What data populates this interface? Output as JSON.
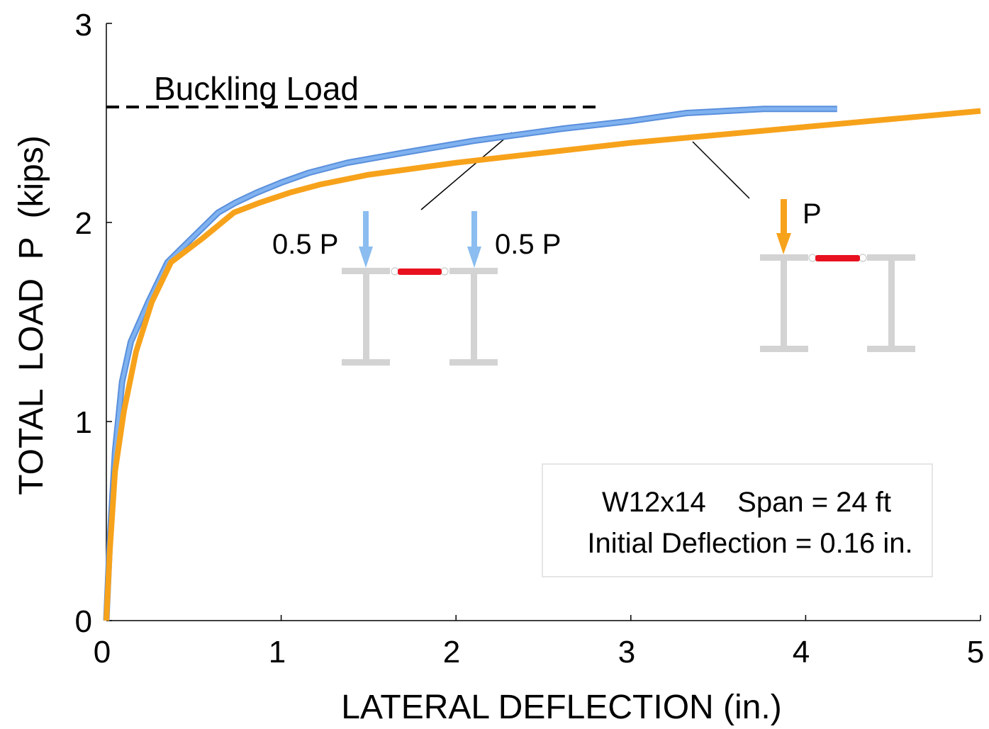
{
  "chart_data": {
    "type": "line",
    "title": "",
    "xlabel": "LATERAL DEFLECTION (in.)",
    "ylabel": "TOTAL  LOAD  P  (kips)",
    "xlim": [
      0,
      5
    ],
    "ylim": [
      0,
      3
    ],
    "xticks": [
      "0",
      "1",
      "2",
      "3",
      "4",
      "5"
    ],
    "yticks": [
      "0",
      "1",
      "2",
      "3"
    ],
    "grid": false,
    "series": [
      {
        "color": "#7fb2ef",
        "outline": "#5a8fdc",
        "x": [
          0,
          0.02,
          0.05,
          0.09,
          0.14,
          0.24,
          0.35,
          0.5,
          0.64,
          0.74,
          0.86,
          1.0,
          1.16,
          1.38,
          1.7,
          2.1,
          2.6,
          3.0,
          3.32,
          3.76,
          4.18
        ],
        "y": [
          0,
          0.4,
          0.85,
          1.2,
          1.4,
          1.6,
          1.8,
          1.93,
          2.05,
          2.1,
          2.15,
          2.2,
          2.25,
          2.3,
          2.35,
          2.41,
          2.47,
          2.51,
          2.55,
          2.57,
          2.57
        ]
      },
      {
        "color": "#f7a21b",
        "x": [
          0,
          0.02,
          0.05,
          0.1,
          0.17,
          0.26,
          0.37,
          0.55,
          0.73,
          0.88,
          1.05,
          1.22,
          1.5,
          2.0,
          2.5,
          3.0,
          3.5,
          4.0,
          4.5,
          5.0
        ],
        "y": [
          0,
          0.35,
          0.75,
          1.05,
          1.35,
          1.6,
          1.8,
          1.92,
          2.05,
          2.1,
          2.15,
          2.19,
          2.24,
          2.3,
          2.35,
          2.4,
          2.44,
          2.48,
          2.52,
          2.56
        ]
      }
    ],
    "reference_line": {
      "label": "Buckling Load",
      "y": 2.58,
      "x_end": 2.8
    },
    "annotations": {
      "half_load_left": "0.5 P",
      "half_load_right": "0.5 P",
      "full_load": "P",
      "info_line1": "W12x14    Span = 24 ft",
      "info_line2": "Initial Deflection = 0.16 in."
    },
    "colors": {
      "blue_arrow": "#8bbdf0",
      "orange_arrow": "#f7a21b",
      "beam": "#d3d3d3",
      "brace": "#e8111f"
    }
  }
}
